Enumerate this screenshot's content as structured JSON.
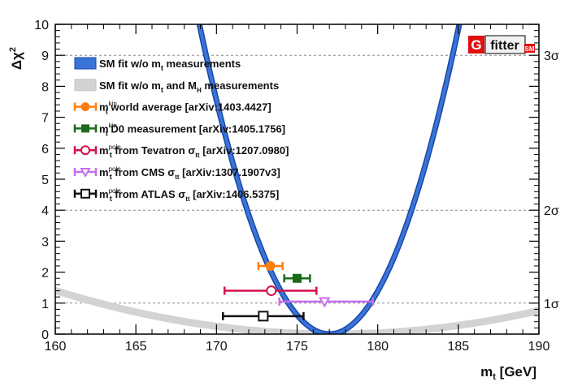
{
  "chart_data": {
    "type": "line",
    "xlabel": "m",
    "xlabel_sub": "t",
    "xlabel_unit": "[GeV]",
    "ylabel": "Δχ",
    "ylabel_sup": "2",
    "xlim": [
      160,
      190
    ],
    "ylim": [
      0,
      10
    ],
    "x_ticks": [
      160,
      165,
      170,
      175,
      180,
      185,
      190
    ],
    "y_ticks": [
      0,
      1,
      2,
      3,
      4,
      5,
      6,
      7,
      8,
      9,
      10
    ],
    "sigma_lines": [
      {
        "y": 1,
        "label": "1σ"
      },
      {
        "y": 4,
        "label": "2σ"
      },
      {
        "y": 9,
        "label": "3σ"
      }
    ],
    "logo": {
      "g": "G",
      "text": "fitter",
      "sm": "SM"
    },
    "curves": [
      {
        "name": "SM fit w/o mt measurements",
        "color": "#3a74d6",
        "edge": "#1a47a8",
        "band": true,
        "min_x": 177.0,
        "k": 0.154
      },
      {
        "name": "SM fit w/o mt and MH measurements",
        "color": "#d3d3d3",
        "edge": "#c4c4c4",
        "band": false,
        "min_x": 177.3,
        "k": 0.0047
      }
    ],
    "legend": [
      {
        "kind": "band",
        "color": "#3a74d6",
        "edge": "#1a47a8",
        "text": "SM fit w/o m",
        "sub": "t",
        "text2": " measurements"
      },
      {
        "kind": "band",
        "color": "#d3d3d3",
        "edge": "#c4c4c4",
        "text": "SM fit w/o m",
        "sub": "t",
        "text2": " and M",
        "sub2": "H",
        "text3": " measurements"
      },
      {
        "kind": "marker",
        "marker": "circle-filled",
        "color": "#ff7f0e",
        "text": "m",
        "sub": "t",
        "sup": "kin",
        "text2": " world average [arXiv:1403.4427]"
      },
      {
        "kind": "marker",
        "marker": "square-filled",
        "color": "#1a6b1a",
        "text": "m",
        "sub": "t",
        "sup": "kin",
        "text2": " D0 measurement [arXiv:1405.1756]"
      },
      {
        "kind": "marker",
        "marker": "circle-open",
        "color": "#d6104a",
        "text": "m",
        "sub": "t",
        "sup": "pole",
        "text2": " from Tevatron  σ",
        "sub2": "tt",
        "text3": " [arXiv:1207.0980]"
      },
      {
        "kind": "marker",
        "marker": "triangle-open",
        "color": "#c46ef0",
        "text": "m",
        "sub": "t",
        "sup": "pole",
        "text2": " from CMS   σ",
        "sub2": "tt",
        "text3": " [arXiv:1307.1907v3]"
      },
      {
        "kind": "marker",
        "marker": "square-open",
        "color": "#111111",
        "text": "m",
        "sub": "t",
        "sup": "pole",
        "text2": " from ATLAS  σ",
        "sub2": "tt",
        "text3": " [arXiv:1406.5375]"
      }
    ],
    "measurements": [
      {
        "name": "mt kin world average",
        "x": 173.34,
        "xlo": 172.6,
        "xhi": 174.1,
        "y": 2.2,
        "marker": "circle-filled",
        "color": "#ff7f0e"
      },
      {
        "name": "mt kin D0",
        "x": 175.0,
        "xlo": 174.2,
        "xhi": 175.8,
        "y": 1.8,
        "marker": "square-filled",
        "color": "#1a6b1a"
      },
      {
        "name": "mt pole Tevatron",
        "x": 173.4,
        "xlo": 170.5,
        "xhi": 176.2,
        "y": 1.4,
        "marker": "circle-open",
        "color": "#d6104a"
      },
      {
        "name": "mt pole CMS",
        "x": 176.7,
        "xlo": 173.9,
        "xhi": 179.7,
        "y": 1.05,
        "marker": "triangle-open",
        "color": "#c46ef0"
      },
      {
        "name": "mt pole ATLAS",
        "x": 172.9,
        "xlo": 170.4,
        "xhi": 175.4,
        "y": 0.58,
        "marker": "square-open",
        "color": "#111111"
      }
    ]
  }
}
